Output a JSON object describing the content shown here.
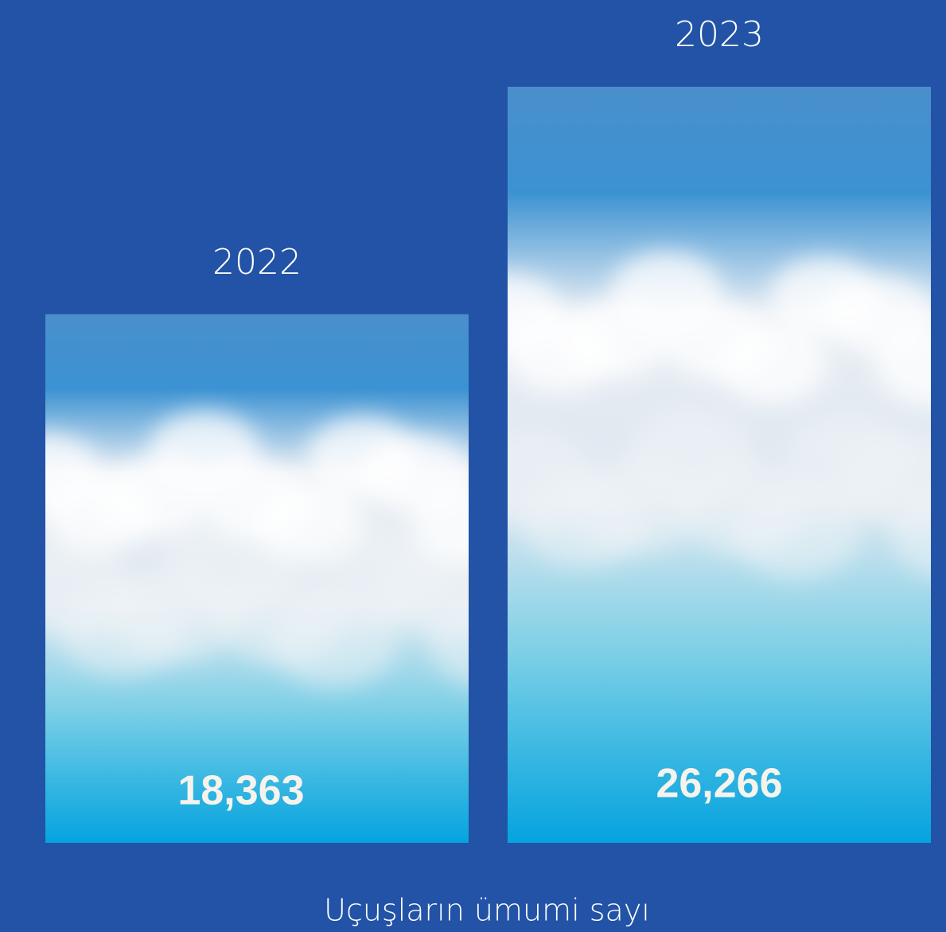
{
  "chart_data": {
    "type": "bar",
    "categories": [
      "2022",
      "2023"
    ],
    "values": [
      18363,
      26266
    ],
    "value_labels": [
      "18,363",
      "26,266"
    ],
    "x_label": "Uçuşların ümumi sayı"
  }
}
